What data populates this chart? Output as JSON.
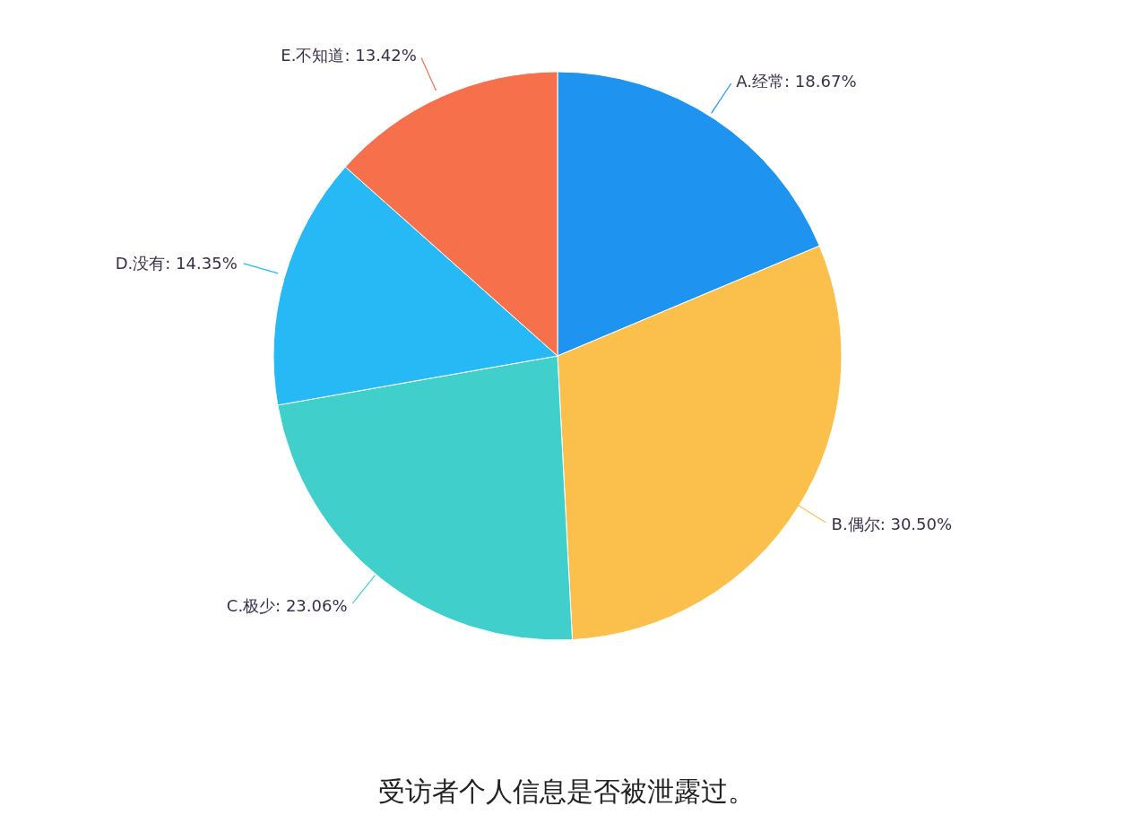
{
  "chart_data": {
    "type": "pie",
    "title": "受访者个人信息是否被泄露过。",
    "categories": [
      "A.经常",
      "B.偶尔",
      "C.极少",
      "D.没有",
      "E.不知道"
    ],
    "values": [
      18.67,
      30.5,
      23.06,
      14.35,
      13.42
    ],
    "value_labels": [
      "18.67%",
      "30.50%",
      "23.06%",
      "14.35%",
      "13.42%"
    ],
    "colors": [
      "#1e94f0",
      "#fbbf4b",
      "#40cfca",
      "#26b9f6",
      "#f6704b"
    ],
    "legend": false
  }
}
